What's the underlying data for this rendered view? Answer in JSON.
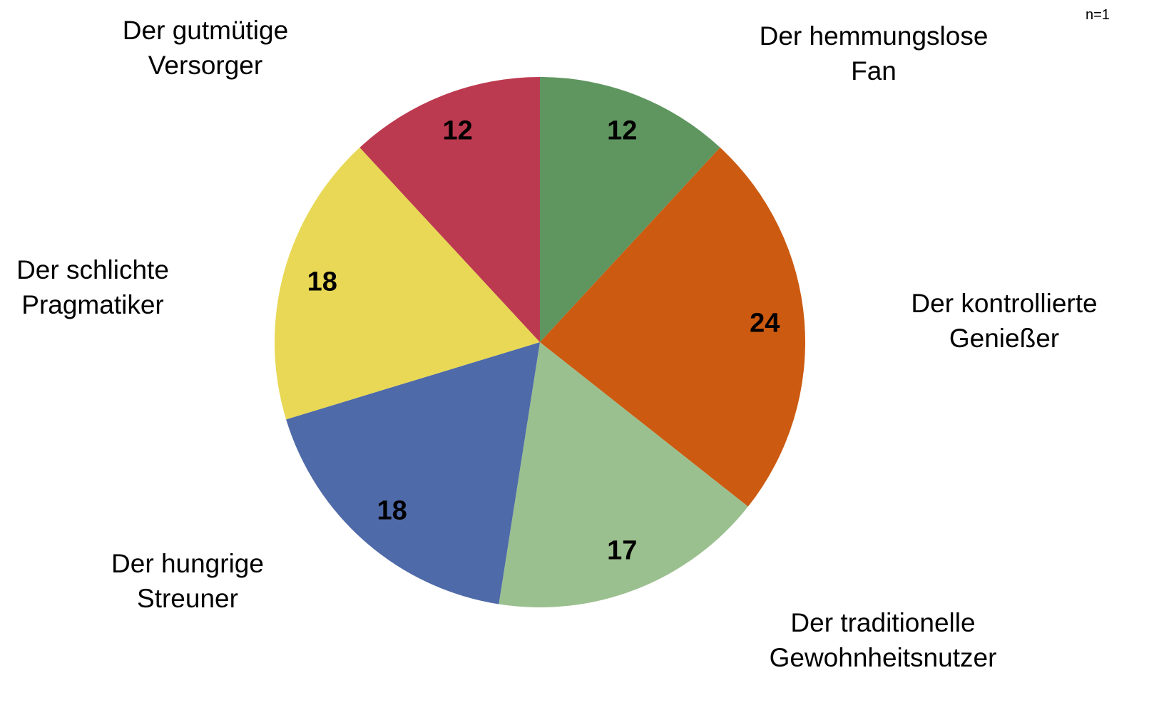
{
  "chart_data": {
    "type": "pie",
    "note": "n=1",
    "categories": [
      "Der hemmungslose Fan",
      "Der kontrollierte Genießer",
      "Der traditionelle Gewohnheitsnutzer",
      "Der hungrige Streuner",
      "Der schlichte Pragmatiker",
      "Der gutmütige Versorger"
    ],
    "values": [
      12,
      24,
      17,
      18,
      18,
      12
    ],
    "colors": [
      "#5f9660",
      "#cc5a10",
      "#9bc08f",
      "#4e6aa8",
      "#e8d855",
      "#bc3a4f"
    ]
  }
}
